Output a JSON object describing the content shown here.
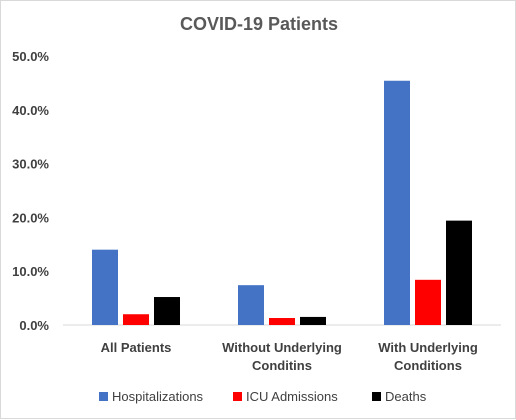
{
  "chart_data": {
    "type": "bar",
    "title": "COVID-19 Patients",
    "xlabel": "",
    "ylabel": "",
    "ylim": [
      0,
      50
    ],
    "yticks": [
      0,
      10,
      20,
      30,
      40,
      50
    ],
    "ytick_labels": [
      "0.0%",
      "10.0%",
      "20.0%",
      "30.0%",
      "40.0%",
      "50.0%"
    ],
    "categories": [
      [
        "All Patients"
      ],
      [
        "Without Underlying",
        "Conditins"
      ],
      [
        "With Underlying",
        "Conditions"
      ]
    ],
    "series": [
      {
        "name": "Hospitalizations",
        "color": "#4472c4",
        "values": [
          14.0,
          7.4,
          45.4
        ]
      },
      {
        "name": "ICU Admissions",
        "color": "#ff0000",
        "values": [
          2.0,
          1.3,
          8.4
        ]
      },
      {
        "name": "Deaths",
        "color": "#000000",
        "values": [
          5.2,
          1.5,
          19.4
        ]
      }
    ],
    "grid": false,
    "legend_position": "bottom"
  }
}
